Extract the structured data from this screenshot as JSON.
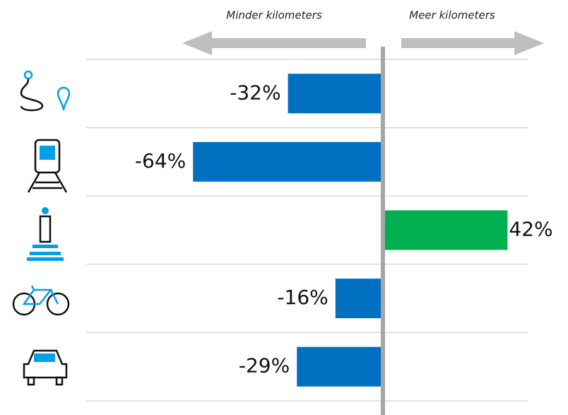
{
  "chart_data": {
    "type": "bar",
    "orientation": "horizontal",
    "annotations": [
      "Minder kilometers",
      "Meer kilometers"
    ],
    "categories": [
      null,
      null,
      null,
      null,
      null
    ],
    "values": [
      -32,
      -64,
      42,
      -16,
      -29
    ],
    "value_labels": [
      "-32%",
      "-64%",
      "42%",
      "-16%",
      "-29%"
    ],
    "colors": [
      "#0070c0",
      "#0070c0",
      "#00b050",
      "#0070c0",
      "#0070c0"
    ],
    "xlim": [
      -100,
      50
    ],
    "grid": true
  }
}
